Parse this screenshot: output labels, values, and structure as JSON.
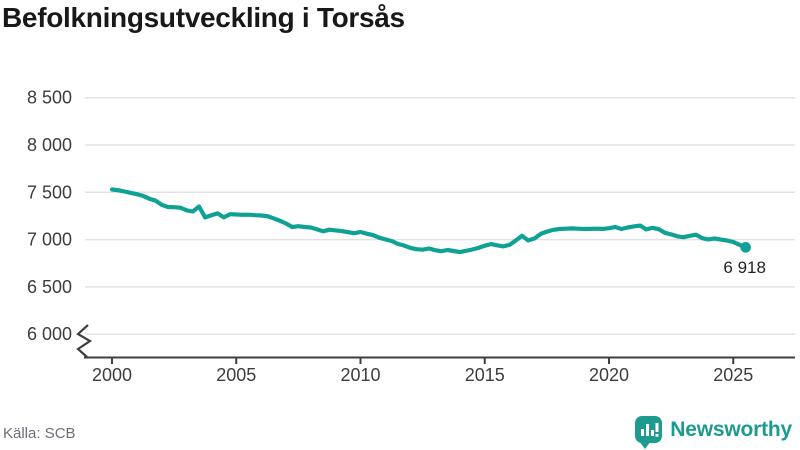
{
  "title": "Befolkningsutveckling i Torsås",
  "source": "Källa: SCB",
  "brand": {
    "name": "Newsworthy",
    "icon": "newsworthy-bar-chart-logo",
    "color": "#1d9b90"
  },
  "colors": {
    "accent": "#0fa294",
    "grid": "#e2e2e2",
    "axis": "#3f3f3f",
    "tick_text": "#3d3d3d",
    "end_label_text": "#242424"
  },
  "chart_data": {
    "type": "line",
    "title": "Befolkningsutveckling i Torsås",
    "xlabel": "",
    "ylabel": "",
    "grid": "horizontal",
    "legend": "none",
    "axis_break_at_bottom": true,
    "ylim": [
      6000,
      8500
    ],
    "xlim": [
      2000,
      2025.5
    ],
    "y_ticks": [
      {
        "value": 6000,
        "label": "6 000"
      },
      {
        "value": 6500,
        "label": "6 500"
      },
      {
        "value": 7000,
        "label": "7 000"
      },
      {
        "value": 7500,
        "label": "7 500"
      },
      {
        "value": 8000,
        "label": "8 000"
      },
      {
        "value": 8500,
        "label": "8 500"
      }
    ],
    "x_ticks": [
      {
        "value": 2000,
        "label": "2000"
      },
      {
        "value": 2005,
        "label": "2005"
      },
      {
        "value": 2010,
        "label": "2010"
      },
      {
        "value": 2015,
        "label": "2015"
      },
      {
        "value": 2020,
        "label": "2020"
      },
      {
        "value": 2025,
        "label": "2025"
      }
    ],
    "x_start": 2000,
    "x_step": 0.25,
    "series": [
      {
        "name": "Befolkning i Torsås",
        "color": "#0fa294",
        "values": [
          7530,
          7522,
          7508,
          7495,
          7480,
          7462,
          7432,
          7412,
          7368,
          7345,
          7343,
          7337,
          7310,
          7297,
          7350,
          7235,
          7257,
          7277,
          7235,
          7268,
          7265,
          7262,
          7263,
          7258,
          7255,
          7248,
          7225,
          7200,
          7170,
          7133,
          7142,
          7133,
          7128,
          7108,
          7088,
          7105,
          7097,
          7090,
          7078,
          7068,
          7080,
          7062,
          7048,
          7020,
          7002,
          6985,
          6955,
          6938,
          6913,
          6898,
          6893,
          6906,
          6888,
          6877,
          6890,
          6880,
          6868,
          6882,
          6895,
          6912,
          6935,
          6952,
          6940,
          6928,
          6945,
          6990,
          7040,
          6992,
          7012,
          7060,
          7085,
          7103,
          7112,
          7115,
          7118,
          7115,
          7112,
          7113,
          7115,
          7113,
          7120,
          7133,
          7112,
          7128,
          7140,
          7148,
          7108,
          7125,
          7110,
          7072,
          7055,
          7035,
          7025,
          7040,
          7052,
          7015,
          7002,
          7012,
          7000,
          6990,
          6975,
          6945,
          6918
        ]
      }
    ],
    "end_annotation": {
      "label": "6 918",
      "value": 6918
    }
  }
}
